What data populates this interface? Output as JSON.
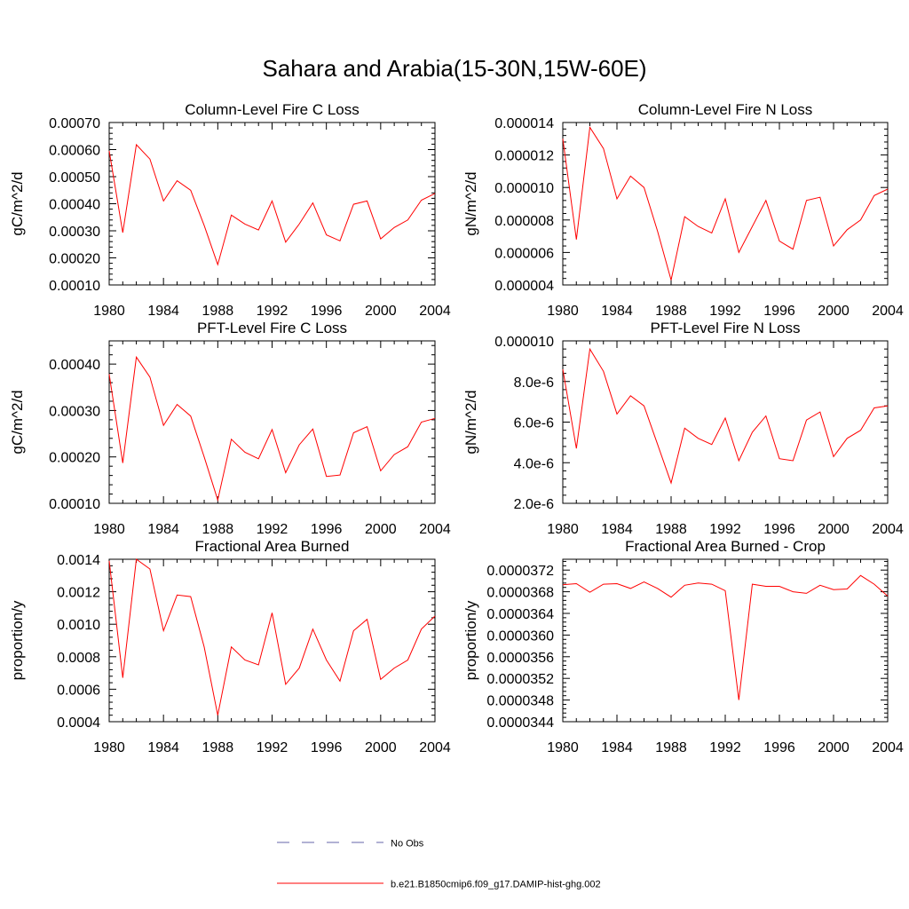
{
  "figure": {
    "title": "Sahara and Arabia(15-30N,15W-60E)",
    "series_color": "#ff0000",
    "obs_color": "#6666aa",
    "legend": {
      "placement": "bottom-center",
      "entries": [
        {
          "label": "No Obs",
          "style": "dashed",
          "color": "#6666aa"
        },
        {
          "label": "b.e21.B1850cmip6.f09_g17.DAMIP-hist-ghg.002",
          "style": "solid",
          "color": "#ff0000"
        }
      ]
    }
  },
  "chart_data": [
    {
      "type": "line",
      "title": "Column-Level Fire C Loss",
      "xlabel": "",
      "ylabel": "gC/m^2/d",
      "xlim": [
        1980,
        2004
      ],
      "ylim": [
        0.0001,
        0.0007
      ],
      "xticks": [
        1980,
        1984,
        1988,
        1992,
        1996,
        2000,
        2004
      ],
      "xtick_labels": [
        "1980",
        "1984",
        "1988",
        "1992",
        "1996",
        "2000",
        "2004"
      ],
      "yticks": [
        0.0001,
        0.0002,
        0.0003,
        0.0004,
        0.0005,
        0.0006,
        0.0007
      ],
      "ytick_labels": [
        "0.00010",
        "0.00020",
        "0.00030",
        "0.00040",
        "0.00050",
        "0.00060",
        "0.00070"
      ],
      "series": [
        {
          "x": [
            1980,
            1981,
            1982,
            1983,
            1984,
            1985,
            1986,
            1987,
            1988,
            1989,
            1990,
            1991,
            1992,
            1993,
            1994,
            1995,
            1996,
            1997,
            1998,
            1999,
            2000,
            2001,
            2002,
            2003,
            2004
          ],
          "values": [
            0.000595,
            0.000293,
            0.000618,
            0.000565,
            0.00041,
            0.000485,
            0.00045,
            0.00032,
            0.000175,
            0.000358,
            0.000325,
            0.000303,
            0.00041,
            0.000258,
            0.000325,
            0.000403,
            0.000285,
            0.000263,
            0.000398,
            0.00041,
            0.00027,
            0.000312,
            0.00034,
            0.000413,
            0.000438
          ]
        }
      ]
    },
    {
      "type": "line",
      "title": "Column-Level Fire N Loss",
      "xlabel": "",
      "ylabel": "gN/m^2/d",
      "xlim": [
        1980,
        2004
      ],
      "ylim": [
        4e-06,
        1.4e-05
      ],
      "xticks": [
        1980,
        1984,
        1988,
        1992,
        1996,
        2000,
        2004
      ],
      "xtick_labels": [
        "1980",
        "1984",
        "1988",
        "1992",
        "1996",
        "2000",
        "2004"
      ],
      "yticks": [
        4e-06,
        6e-06,
        8e-06,
        1e-05,
        1.2e-05,
        1.4e-05
      ],
      "ytick_labels": [
        "0.000004",
        "0.000006",
        "0.000008",
        "0.000010",
        "0.000012",
        "0.000014"
      ],
      "series": [
        {
          "x": [
            1980,
            1981,
            1982,
            1983,
            1984,
            1985,
            1986,
            1987,
            1988,
            1989,
            1990,
            1991,
            1992,
            1993,
            1994,
            1995,
            1996,
            1997,
            1998,
            1999,
            2000,
            2001,
            2002,
            2003,
            2004
          ],
          "values": [
            1.3e-05,
            6.8e-06,
            1.37e-05,
            1.24e-05,
            9.3e-06,
            1.07e-05,
            1e-05,
            7.3e-06,
            4.3e-06,
            8.2e-06,
            7.6e-06,
            7.2e-06,
            9.3e-06,
            6e-06,
            7.6e-06,
            9.2e-06,
            6.7e-06,
            6.2e-06,
            9.2e-06,
            9.4e-06,
            6.4e-06,
            7.4e-06,
            8e-06,
            9.5e-06,
            9.9e-06
          ]
        }
      ]
    },
    {
      "type": "line",
      "title": "PFT-Level Fire C Loss",
      "xlabel": "",
      "ylabel": "gC/m^2/d",
      "xlim": [
        1980,
        2004
      ],
      "ylim": [
        0.0001,
        0.00045
      ],
      "xticks": [
        1980,
        1984,
        1988,
        1992,
        1996,
        2000,
        2004
      ],
      "xtick_labels": [
        "1980",
        "1984",
        "1988",
        "1992",
        "1996",
        "2000",
        "2004"
      ],
      "yticks": [
        0.0001,
        0.0002,
        0.0003,
        0.0004
      ],
      "ytick_labels": [
        "0.00010",
        "0.00020",
        "0.00030",
        "0.00040"
      ],
      "series": [
        {
          "x": [
            1980,
            1981,
            1982,
            1983,
            1984,
            1985,
            1986,
            1987,
            1988,
            1989,
            1990,
            1991,
            1992,
            1993,
            1994,
            1995,
            1996,
            1997,
            1998,
            1999,
            2000,
            2001,
            2002,
            2003,
            2004
          ],
          "values": [
            0.000378,
            0.000187,
            0.000415,
            0.000372,
            0.000268,
            0.000313,
            0.000288,
            0.0002,
            0.000107,
            0.000238,
            0.00021,
            0.000196,
            0.000259,
            0.000166,
            0.000226,
            0.00026,
            0.000158,
            0.000161,
            0.000252,
            0.000265,
            0.00017,
            0.000205,
            0.000222,
            0.000275,
            0.000283
          ]
        }
      ]
    },
    {
      "type": "line",
      "title": "PFT-Level Fire N Loss",
      "xlabel": "",
      "ylabel": "gN/m^2/d",
      "xlim": [
        1980,
        2004
      ],
      "ylim": [
        2e-06,
        1e-05
      ],
      "xticks": [
        1980,
        1984,
        1988,
        1992,
        1996,
        2000,
        2004
      ],
      "xtick_labels": [
        "1980",
        "1984",
        "1988",
        "1992",
        "1996",
        "2000",
        "2004"
      ],
      "yticks": [
        2e-06,
        4e-06,
        6e-06,
        8e-06,
        1e-05
      ],
      "ytick_labels": [
        "2.0e-6",
        "4.0e-6",
        "6.0e-6",
        "8.0e-6",
        "0.000010"
      ],
      "series": [
        {
          "x": [
            1980,
            1981,
            1982,
            1983,
            1984,
            1985,
            1986,
            1987,
            1988,
            1989,
            1990,
            1991,
            1992,
            1993,
            1994,
            1995,
            1996,
            1997,
            1998,
            1999,
            2000,
            2001,
            2002,
            2003,
            2004
          ],
          "values": [
            8.6e-06,
            4.7e-06,
            9.6e-06,
            8.5e-06,
            6.4e-06,
            7.3e-06,
            6.8e-06,
            4.9e-06,
            3e-06,
            5.7e-06,
            5.2e-06,
            4.9e-06,
            6.2e-06,
            4.1e-06,
            5.5e-06,
            6.3e-06,
            4.2e-06,
            4.1e-06,
            6.1e-06,
            6.5e-06,
            4.3e-06,
            5.2e-06,
            5.6e-06,
            6.7e-06,
            6.8e-06
          ]
        }
      ]
    },
    {
      "type": "line",
      "title": "Fractional Area Burned",
      "xlabel": "",
      "ylabel": "proportion/y",
      "xlim": [
        1980,
        2004
      ],
      "ylim": [
        0.0004,
        0.0014
      ],
      "xticks": [
        1980,
        1984,
        1988,
        1992,
        1996,
        2000,
        2004
      ],
      "xtick_labels": [
        "1980",
        "1984",
        "1988",
        "1992",
        "1996",
        "2000",
        "2004"
      ],
      "yticks": [
        0.0004,
        0.0006,
        0.0008,
        0.001,
        0.0012,
        0.0014
      ],
      "ytick_labels": [
        "0.0004",
        "0.0006",
        "0.0008",
        "0.0010",
        "0.0012",
        "0.0014"
      ],
      "series": [
        {
          "x": [
            1980,
            1981,
            1982,
            1983,
            1984,
            1985,
            1986,
            1987,
            1988,
            1989,
            1990,
            1991,
            1992,
            1993,
            1994,
            1995,
            1996,
            1997,
            1998,
            1999,
            2000,
            2001,
            2002,
            2003,
            2004
          ],
          "values": [
            0.00139,
            0.00067,
            0.0014,
            0.00134,
            0.00096,
            0.00118,
            0.00117,
            0.00086,
            0.00044,
            0.00086,
            0.00078,
            0.00075,
            0.00107,
            0.00063,
            0.00073,
            0.00097,
            0.00078,
            0.00065,
            0.00096,
            0.00103,
            0.00066,
            0.00073,
            0.00078,
            0.00097,
            0.00105
          ]
        }
      ]
    },
    {
      "type": "line",
      "title": "Fractional Area Burned - Crop",
      "xlabel": "",
      "ylabel": "proportion/y",
      "xlim": [
        1980,
        2004
      ],
      "ylim": [
        3.44e-05,
        3.74e-05
      ],
      "xticks": [
        1980,
        1984,
        1988,
        1992,
        1996,
        2000,
        2004
      ],
      "xtick_labels": [
        "1980",
        "1984",
        "1988",
        "1992",
        "1996",
        "2000",
        "2004"
      ],
      "yticks": [
        3.44e-05,
        3.48e-05,
        3.52e-05,
        3.56e-05,
        3.6e-05,
        3.64e-05,
        3.68e-05,
        3.72e-05
      ],
      "ytick_labels": [
        "0.0000344",
        "0.0000348",
        "0.0000352",
        "0.0000356",
        "0.0000360",
        "0.0000364",
        "0.0000368",
        "0.0000372"
      ],
      "series": [
        {
          "x": [
            1980,
            1981,
            1982,
            1983,
            1984,
            1985,
            1986,
            1987,
            1988,
            1989,
            1990,
            1991,
            1992,
            1993,
            1994,
            1995,
            1996,
            1997,
            1998,
            1999,
            2000,
            2001,
            2002,
            2003,
            2004
          ],
          "values": [
            3.693e-05,
            3.695e-05,
            3.679e-05,
            3.694e-05,
            3.695e-05,
            3.686e-05,
            3.698e-05,
            3.686e-05,
            3.67e-05,
            3.692e-05,
            3.696e-05,
            3.694e-05,
            3.682e-05,
            3.48e-05,
            3.694e-05,
            3.69e-05,
            3.69e-05,
            3.68e-05,
            3.677e-05,
            3.692e-05,
            3.684e-05,
            3.685e-05,
            3.71e-05,
            3.694e-05,
            3.672e-05
          ]
        }
      ]
    }
  ]
}
